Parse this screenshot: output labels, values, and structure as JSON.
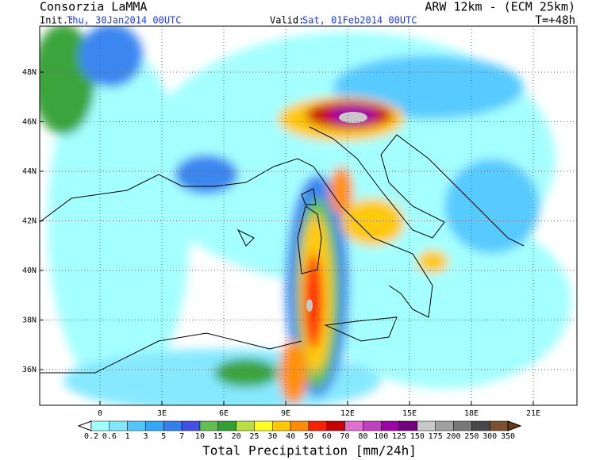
{
  "header": {
    "organization": "Consorzia LaMMA",
    "model": "ARW 12km - (ECM 25km)",
    "init_label": "Init.:",
    "init_time": "Thu, 30Jan2014 00UTC",
    "valid_label": "Valid:",
    "valid_time": "Sat, 01Feb2014 00UTC",
    "lead_time": "T=+48h"
  },
  "map": {
    "lat_ticks": [
      {
        "value": 36,
        "label": "36N"
      },
      {
        "value": 38,
        "label": "38N"
      },
      {
        "value": 40,
        "label": "40N"
      },
      {
        "value": 42,
        "label": "42N"
      },
      {
        "value": 44,
        "label": "44N"
      },
      {
        "value": 46,
        "label": "46N"
      },
      {
        "value": 48,
        "label": "48N"
      }
    ],
    "lon_ticks": [
      0,
      {
        "value": 3,
        "label": "3E"
      },
      {
        "value": 6,
        "label": "6E"
      },
      {
        "value": 9,
        "label": "9E"
      },
      {
        "value": 12,
        "label": "12E"
      },
      {
        "value": 15,
        "label": "15E"
      },
      {
        "value": 18,
        "label": "18E"
      },
      {
        "value": 21,
        "label": "21E"
      }
    ]
  },
  "colorbar": {
    "title": "Total Precipitation [mm/24h]",
    "levels": [
      0.2,
      0.6,
      1,
      3,
      5,
      7,
      10,
      15,
      20,
      25,
      30,
      40,
      50,
      60,
      70,
      80,
      100,
      125,
      150,
      175,
      200,
      250,
      300,
      350
    ],
    "colors": [
      "#a0ffff",
      "#80e8ff",
      "#50c8ff",
      "#30a8f8",
      "#3080f0",
      "#4050e8",
      "#60c050",
      "#30a030",
      "#b8e040",
      "#ffff20",
      "#ffc800",
      "#ff8c00",
      "#ff2000",
      "#c80000",
      "#e070d0",
      "#c040c0",
      "#a000a8",
      "#700080",
      "#c8c8c8",
      "#a0a0a0",
      "#787878",
      "#484848",
      "#7a5030"
    ],
    "under_color": "#ffffff",
    "over_color": "#6a3a10"
  }
}
